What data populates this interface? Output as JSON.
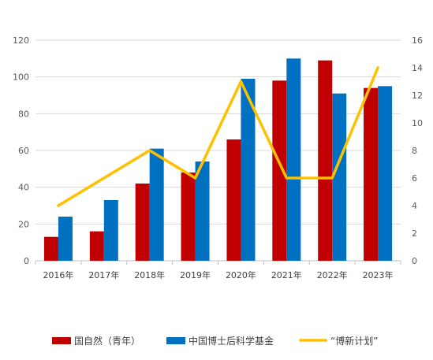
{
  "chart_data": {
    "type": "bar",
    "categories": [
      "2016年",
      "2017年",
      "2018年",
      "2019年",
      "2020年",
      "2021年",
      "2022年",
      "2023年"
    ],
    "series": [
      {
        "name": "国自然（青年）",
        "type": "bar",
        "axis": "left",
        "color": "#c00000",
        "values": [
          13,
          16,
          42,
          48,
          66,
          98,
          109,
          94
        ]
      },
      {
        "name": "中国博士后科学基金",
        "type": "bar",
        "axis": "left",
        "color": "#0070c0",
        "values": [
          24,
          33,
          61,
          54,
          99,
          110,
          91,
          95
        ]
      },
      {
        "name": "“博新计划”",
        "type": "line",
        "axis": "right",
        "color": "#ffc000",
        "values": [
          4,
          6,
          8,
          6,
          13,
          6,
          6,
          14
        ]
      }
    ],
    "y_left": {
      "min": 0,
      "max": 120,
      "ticks": [
        0,
        20,
        40,
        60,
        80,
        100,
        120
      ]
    },
    "y_right": {
      "min": 0,
      "max": 16,
      "ticks": [
        0,
        2,
        4,
        6,
        8,
        10,
        12,
        14,
        16
      ]
    },
    "grid": true,
    "legend_position": "bottom"
  }
}
